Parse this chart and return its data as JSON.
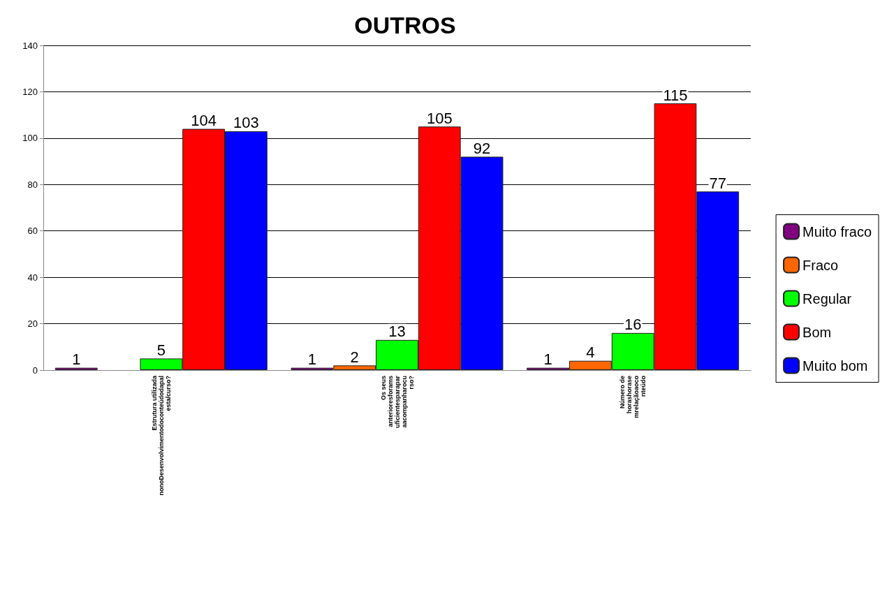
{
  "chart_data": {
    "type": "bar",
    "title": "OUTROS",
    "categories": [
      "Estrutura utilizada\nnonoDesenvolvimentodoconteúdodapal\nesta/curso?",
      "Os seus\nanterioresforams\nuficientesparapar\naacompanharocu\nrso?",
      "Número de\nhorashorase\nmrelaçãoaoco\nnteúdo"
    ],
    "series": [
      {
        "name": "Muito fraco",
        "color": "#800080",
        "values": [
          1,
          1,
          1
        ]
      },
      {
        "name": "Fraco",
        "color": "#ff6600",
        "values": [
          null,
          2,
          4
        ]
      },
      {
        "name": "Regular",
        "color": "#00ff00",
        "values": [
          5,
          13,
          16
        ]
      },
      {
        "name": "Bom",
        "color": "#ff0000",
        "values": [
          104,
          105,
          115
        ]
      },
      {
        "name": "Muito bom",
        "color": "#0000ff",
        "values": [
          103,
          92,
          77
        ]
      }
    ],
    "ylim": [
      0,
      140
    ],
    "yticks": [
      0,
      20,
      40,
      60,
      80,
      100,
      120,
      140
    ],
    "grid": "y",
    "legend": "right",
    "data_labels": true
  }
}
